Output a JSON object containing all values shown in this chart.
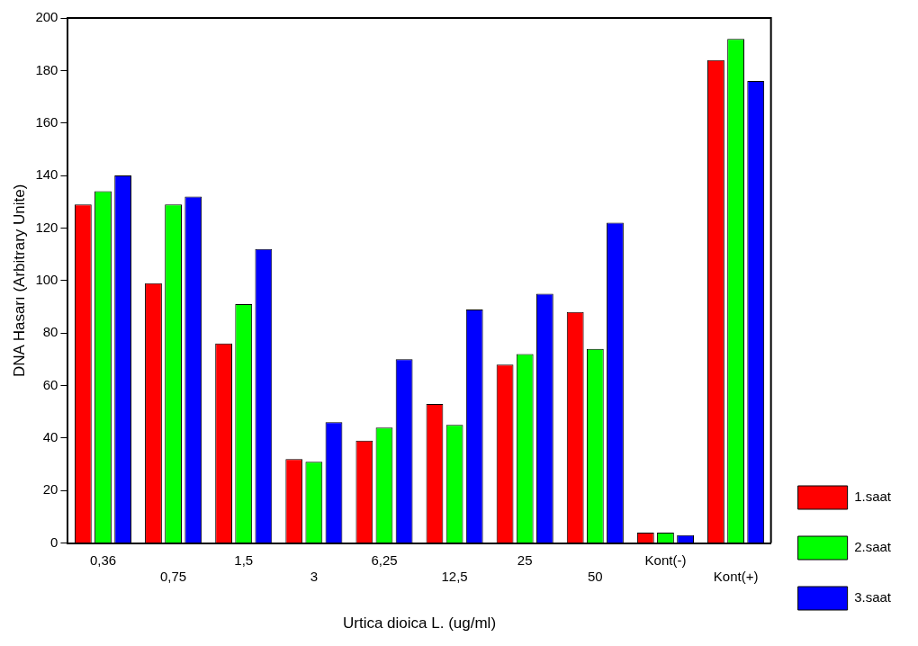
{
  "chart_data": {
    "type": "bar",
    "xlabel": "Urtica dioica L. (ug/ml)",
    "ylabel": "DNA Hasarı (Arbitrary Unite)",
    "categories": [
      "0,36",
      "0,75",
      "1,5",
      "3",
      "6,25",
      "12,5",
      "25",
      "50",
      "Kont(-)",
      "Kont(+)"
    ],
    "series": [
      {
        "name": "1.saat",
        "color": "#ff0000",
        "values": [
          129,
          99,
          76,
          32,
          39,
          53,
          68,
          88,
          4,
          184
        ]
      },
      {
        "name": "2.saat",
        "color": "#00ff00",
        "values": [
          134,
          129,
          91,
          31,
          44,
          45,
          72,
          74,
          4,
          192
        ]
      },
      {
        "name": "3.saat",
        "color": "#0000ff",
        "values": [
          140,
          132,
          112,
          46,
          70,
          89,
          95,
          122,
          3,
          176
        ]
      }
    ],
    "ylim": [
      0,
      200
    ],
    "yticks": [
      0,
      20,
      40,
      60,
      80,
      100,
      120,
      140,
      160,
      180,
      200
    ],
    "grid": false,
    "legend": "right"
  }
}
